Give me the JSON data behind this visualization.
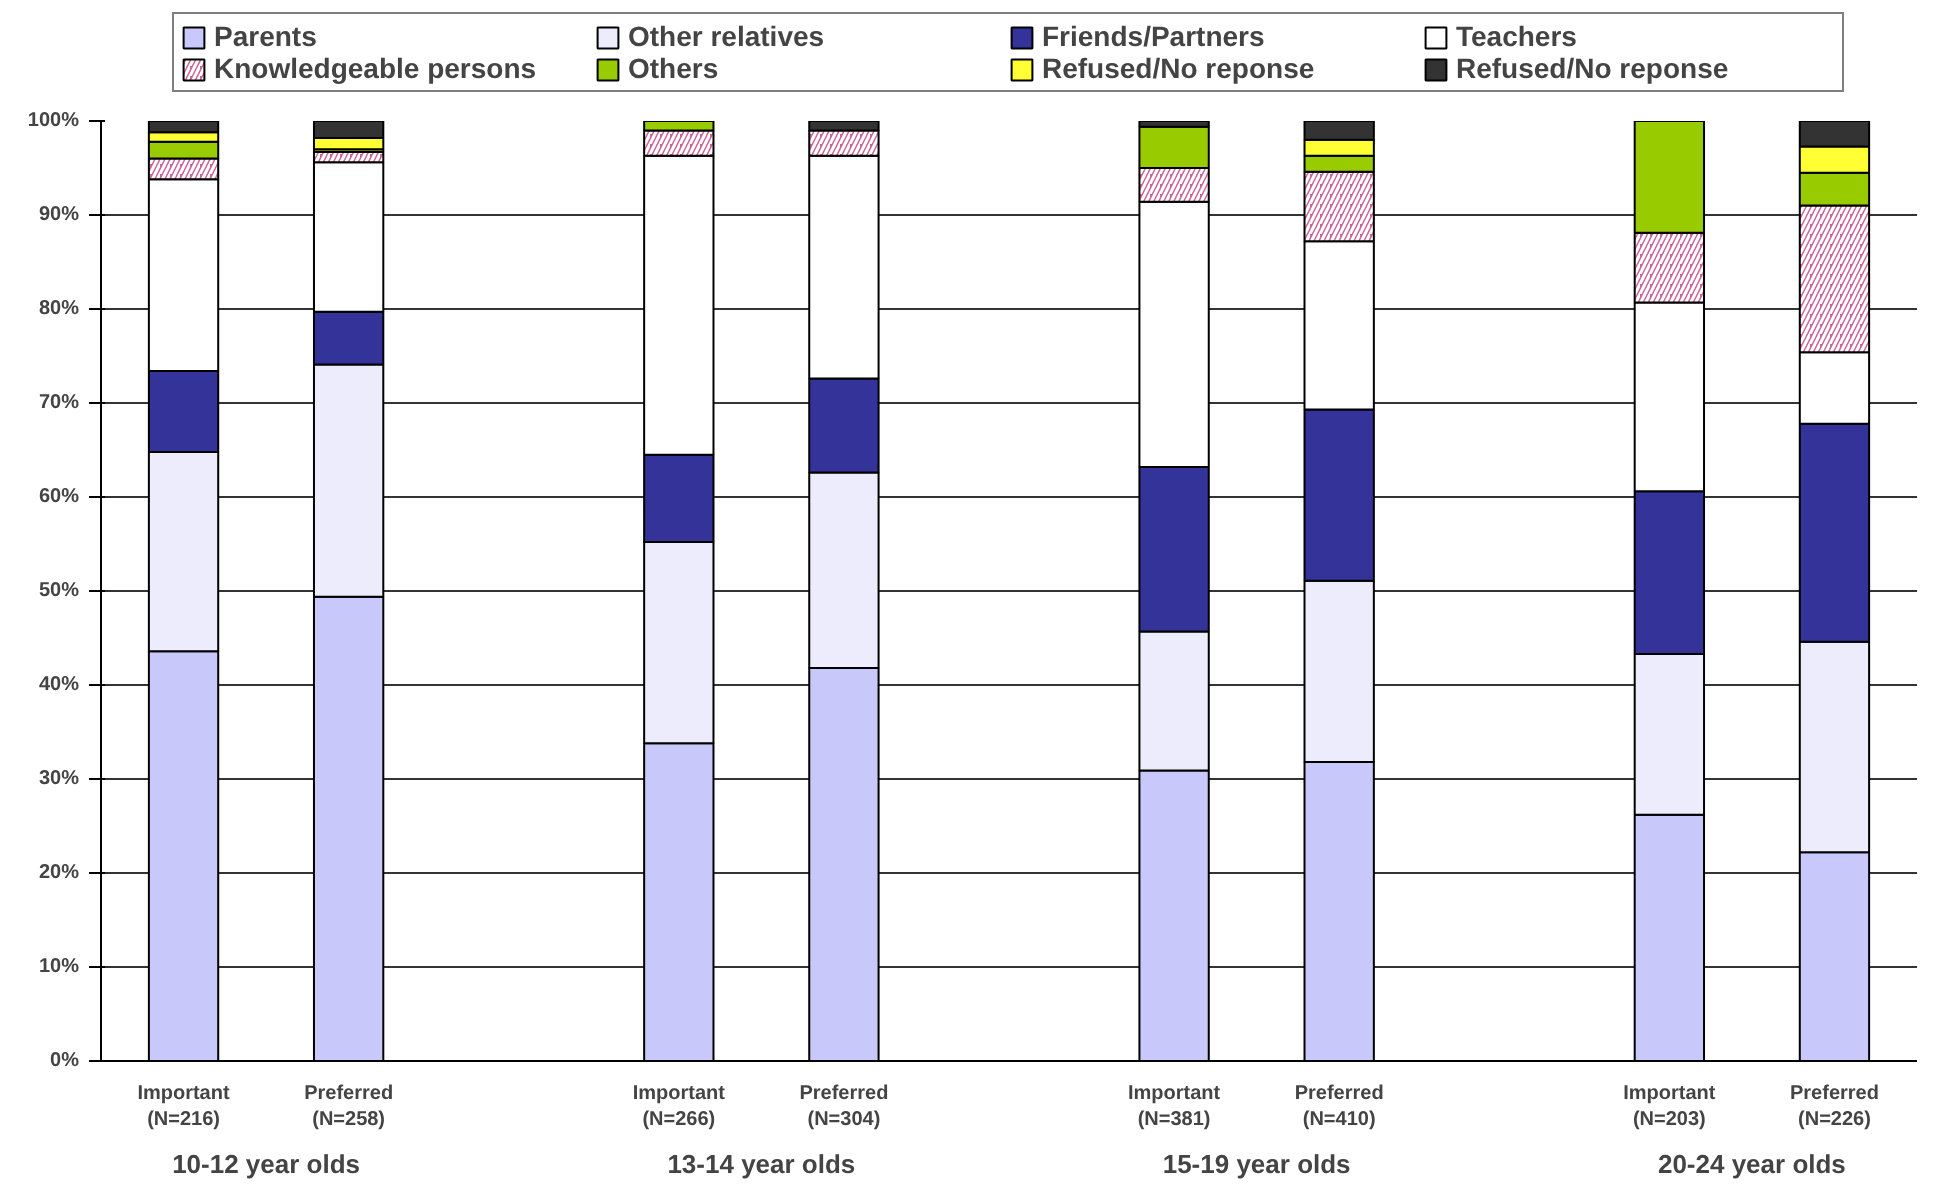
{
  "chart_data": {
    "type": "bar",
    "stacked": true,
    "categories": [
      "Important\n(N=216)",
      "Preferred\n(N=258)",
      null,
      "Important\n(N=266)",
      "Preferred\n(N=304)",
      null,
      "Important\n(N=381)",
      "Preferred\n(N=410)",
      null,
      "Important\n(N=203)",
      "Preferred\n(N=226)"
    ],
    "annotations": [
      "10-12 year olds",
      "13-14 year olds",
      "15-19 year olds",
      "20-24 year olds"
    ],
    "ylim": [
      0,
      100
    ],
    "yticks": [
      {
        "value": 0,
        "label": "0%"
      },
      {
        "value": 10,
        "label": "10%"
      },
      {
        "value": 20,
        "label": "20%"
      },
      {
        "value": 30,
        "label": "30%"
      },
      {
        "value": 40,
        "label": "40%"
      },
      {
        "value": 50,
        "label": "50%"
      },
      {
        "value": 60,
        "label": "60%"
      },
      {
        "value": 70,
        "label": "70%"
      },
      {
        "value": 80,
        "label": "80%"
      },
      {
        "value": 90,
        "label": "90%"
      },
      {
        "value": 100,
        "label": "100%"
      }
    ],
    "grid": "y",
    "legend": "top",
    "series": [
      {
        "name": "Parents",
        "color": "#c8c8fa",
        "values": [
          43.6,
          49.4,
          null,
          33.8,
          41.8,
          null,
          30.9,
          31.8,
          null,
          26.2,
          22.2
        ]
      },
      {
        "name": "Other relatives",
        "color": "#ececfc",
        "values": [
          21.2,
          24.7,
          null,
          21.4,
          20.8,
          null,
          14.8,
          19.3,
          null,
          17.1,
          22.4
        ]
      },
      {
        "name": "Friends/Partners",
        "color": "#333399",
        "values": [
          8.6,
          5.6,
          null,
          9.3,
          10.0,
          null,
          17.5,
          18.2,
          null,
          17.3,
          23.2
        ]
      },
      {
        "name": "Teachers",
        "color": "#ffffff",
        "values": [
          20.4,
          15.9,
          null,
          31.8,
          23.7,
          null,
          28.2,
          17.9,
          null,
          20.1,
          7.6
        ]
      },
      {
        "name": "Knowledgeable persons",
        "color": "#cc6699",
        "values": [
          2.2,
          1.1,
          null,
          2.7,
          2.7,
          null,
          3.6,
          7.4,
          null,
          7.4,
          15.6
        ]
      },
      {
        "name": "Others",
        "color": "#99cc00",
        "values": [
          1.8,
          0.3,
          null,
          1.0,
          0,
          null,
          4.4,
          1.7,
          null,
          11.9,
          3.5
        ]
      },
      {
        "name": "Refused/No reponse",
        "color": "#ffff33",
        "values": [
          1.0,
          1.2,
          null,
          0,
          0,
          null,
          0,
          1.7,
          null,
          0,
          2.8
        ]
      },
      {
        "name": "Refused/No reponse",
        "color": "#333333",
        "values": [
          1.2,
          1.8,
          null,
          0,
          1.0,
          null,
          0.6,
          2.0,
          null,
          0,
          2.7
        ]
      }
    ]
  }
}
